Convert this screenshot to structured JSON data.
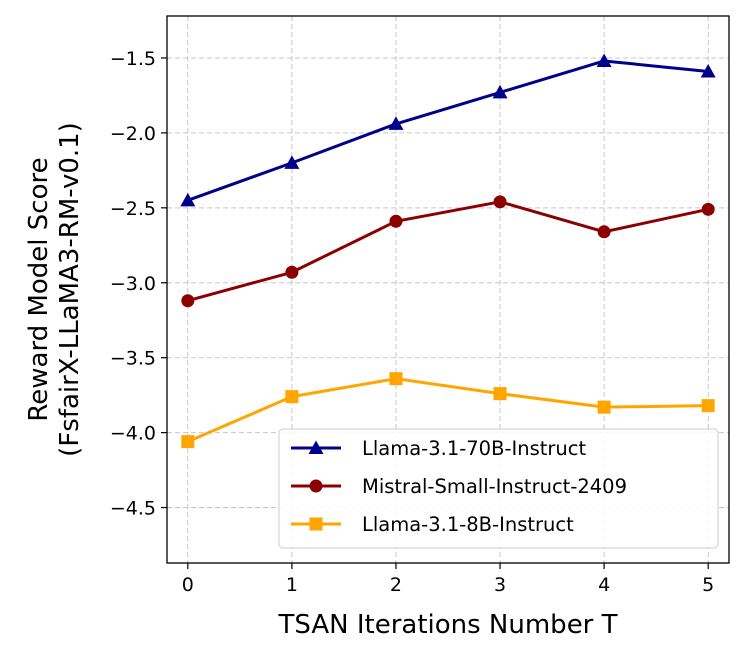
{
  "chart_data": {
    "type": "line",
    "title": "",
    "xlabel": "TSAN Iterations Number T",
    "ylabel_line1": "Reward Model Score",
    "ylabel_line2": "(FsfairX-LLaMA3-RM-v0.1)",
    "x": [
      0,
      1,
      2,
      3,
      4,
      5
    ],
    "xlim": [
      -0.2,
      5.2
    ],
    "ylim": [
      -4.87,
      -1.22
    ],
    "xticks": [
      0,
      1,
      2,
      3,
      4,
      5
    ],
    "xtick_labels": [
      "0",
      "1",
      "2",
      "3",
      "4",
      "5"
    ],
    "yticks": [
      -4.5,
      -4.0,
      -3.5,
      -3.0,
      -2.5,
      -2.0,
      -1.5
    ],
    "ytick_labels": [
      "−4.5",
      "−4.0",
      "−3.5",
      "−3.0",
      "−2.5",
      "−2.0",
      "−1.5"
    ],
    "grid": true,
    "legend_position": "lower-right",
    "series": [
      {
        "name": "Llama-3.1-70B-Instruct",
        "color": "#00008b",
        "marker": "triangle",
        "values": [
          -2.45,
          -2.2,
          -1.94,
          -1.73,
          -1.52,
          -1.59
        ]
      },
      {
        "name": "Mistral-Small-Instruct-2409",
        "color": "#8b0000",
        "marker": "circle",
        "values": [
          -3.12,
          -2.93,
          -2.59,
          -2.46,
          -2.66,
          -2.51
        ]
      },
      {
        "name": "Llama-3.1-8B-Instruct",
        "color": "#ffa500",
        "marker": "square",
        "values": [
          -4.06,
          -3.76,
          -3.64,
          -3.74,
          -3.83,
          -3.82
        ]
      }
    ]
  }
}
